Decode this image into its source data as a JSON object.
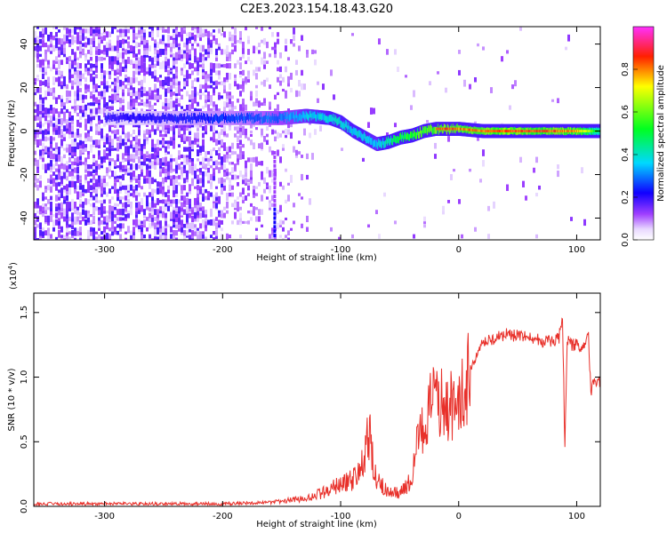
{
  "title": "C2E3.2023.154.18.43.G20",
  "chart_data": [
    {
      "type": "heatmap",
      "xlabel": "Height of straight line (km)",
      "ylabel": "Frequency (Hz)",
      "xlim": [
        -360,
        120
      ],
      "ylim": [
        -50,
        48
      ],
      "xticks": [
        -300,
        -200,
        -100,
        0,
        100
      ],
      "yticks": [
        -40,
        -20,
        0,
        20,
        40
      ],
      "colorbar": {
        "label": "Normalized spectral amplitude",
        "range": [
          0,
          1
        ],
        "ticks": [
          "0.0",
          "0.2",
          "0.4",
          "0.6",
          "0.8"
        ],
        "colors": [
          "#ffffff",
          "#8a00ff",
          "#0000ff",
          "#00ffff",
          "#00ff00",
          "#ffff00",
          "#ff0000",
          "#ff00ff"
        ]
      },
      "ridge": {
        "x": [
          -280,
          -240,
          -200,
          -170,
          -150,
          -130,
          -110,
          -100,
          -90,
          -80,
          -70,
          -60,
          -50,
          -40,
          -30,
          -20,
          -10,
          0,
          20,
          40,
          60,
          80,
          100,
          120
        ],
        "freq": [
          6,
          6,
          6,
          6,
          6,
          7,
          6,
          4,
          0,
          -3,
          -6,
          -5,
          -3,
          -2,
          0,
          1,
          1,
          1,
          0,
          0,
          0,
          0,
          0,
          0
        ],
        "amplitude": [
          0.15,
          0.2,
          0.25,
          0.3,
          0.35,
          0.45,
          0.5,
          0.5,
          0.5,
          0.5,
          0.45,
          0.6,
          0.7,
          0.8,
          0.85,
          0.9,
          0.9,
          0.85,
          0.9,
          0.9,
          0.9,
          0.9,
          0.85,
          0.5
        ]
      }
    },
    {
      "type": "line",
      "xlabel": "Height of straight line (km)",
      "ylabel": "SNR (10 * v/v)",
      "yscale_label": "(x10",
      "yscale_exp": "4",
      "xlim": [
        -360,
        120
      ],
      "ylim": [
        0,
        1.65
      ],
      "xticks": [
        -300,
        -200,
        -100,
        0,
        100
      ],
      "yticks": [
        "0.0",
        "0.5",
        "1.0",
        "1.5"
      ],
      "series": [
        {
          "color": "#e8302a",
          "x": [
            -360,
            -300,
            -250,
            -200,
            -160,
            -130,
            -110,
            -100,
            -90,
            -80,
            -76,
            -70,
            -60,
            -50,
            -40,
            -35,
            -30,
            -25,
            -20,
            -15,
            -10,
            -5,
            0,
            5,
            10,
            15,
            20,
            30,
            40,
            50,
            60,
            70,
            80,
            85,
            88,
            90,
            92,
            95,
            100,
            105,
            110,
            112,
            115,
            120
          ],
          "y": [
            0.02,
            0.02,
            0.02,
            0.02,
            0.03,
            0.06,
            0.12,
            0.18,
            0.2,
            0.35,
            0.55,
            0.2,
            0.12,
            0.1,
            0.2,
            0.5,
            0.6,
            0.75,
            0.85,
            0.8,
            0.75,
            0.78,
            0.85,
            0.9,
            1.05,
            1.15,
            1.25,
            1.3,
            1.33,
            1.32,
            1.3,
            1.28,
            1.28,
            1.3,
            1.45,
            0.45,
            1.3,
            1.25,
            1.25,
            1.22,
            1.3,
            0.88,
            0.98,
            0.98
          ]
        }
      ]
    }
  ]
}
